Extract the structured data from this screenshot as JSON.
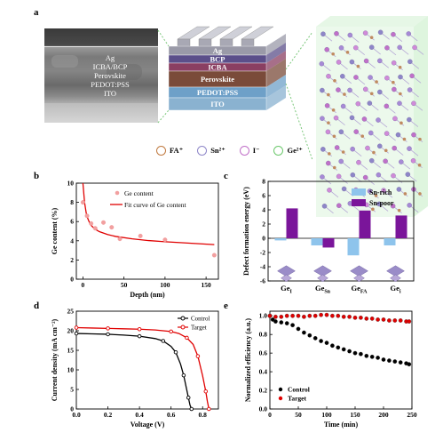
{
  "panels": {
    "a": {
      "label": "a",
      "sem_layers": [
        "Ag",
        "ICBA/BCP",
        "Perovskite",
        "PEDOT:PSS",
        "ITO"
      ],
      "stack_layers": [
        {
          "name": "Ag",
          "color": "#9a9aa8"
        },
        {
          "name": "BCP",
          "color": "#5b4f8a"
        },
        {
          "name": "ICBA",
          "color": "#8a3f62"
        },
        {
          "name": "Perovskite",
          "color": "#7a4b3a"
        },
        {
          "name": "PEDOT:PSS",
          "color": "#6ea0c8"
        },
        {
          "name": "ITO",
          "color": "#8ab2d0"
        }
      ],
      "legend": [
        {
          "text": "FA⁺",
          "color": "#c07a40"
        },
        {
          "text": "Sn²⁺",
          "color": "#8e86c8"
        },
        {
          "text": "I⁻",
          "color": "#c070c8"
        },
        {
          "text": "Ge²⁺",
          "color": "#6cc86c"
        }
      ]
    },
    "b": {
      "label": "b"
    },
    "c": {
      "label": "c"
    },
    "d": {
      "label": "d"
    },
    "e": {
      "label": "e"
    }
  },
  "chart_data": [
    {
      "id": "b",
      "type": "scatter",
      "xlabel": "Depth (nm)",
      "ylabel": "Ge content (%)",
      "xlim": [
        -8,
        165
      ],
      "ylim": [
        0,
        10
      ],
      "xticks": [
        0,
        50,
        100,
        150
      ],
      "yticks": [
        0,
        2,
        4,
        6,
        8,
        10
      ],
      "series": [
        {
          "name": "Ge content",
          "color": "#f2a0a0",
          "x": [
            0,
            5,
            10,
            15,
            25,
            35,
            45,
            70,
            100,
            160
          ],
          "y": [
            8.0,
            6.6,
            5.8,
            5.3,
            5.9,
            5.4,
            4.2,
            4.5,
            4.1,
            2.5
          ]
        },
        {
          "name": "Fit curve of Ge content",
          "color": "#e00000",
          "x": [
            0,
            2,
            4,
            6,
            8,
            10,
            15,
            20,
            30,
            40,
            60,
            80,
            100,
            130,
            160
          ],
          "y": [
            10,
            8.0,
            6.9,
            6.3,
            5.9,
            5.6,
            5.2,
            4.95,
            4.65,
            4.45,
            4.2,
            4.02,
            3.9,
            3.75,
            3.6
          ]
        }
      ],
      "legend_position": "top-right"
    },
    {
      "id": "c",
      "type": "bar",
      "ylabel": "Defect formation energy (eV)",
      "ylim": [
        -6,
        8
      ],
      "yticks": [
        -6,
        -4,
        -2,
        0,
        2,
        4,
        6,
        8
      ],
      "categories": [
        "Geᵢ",
        "Ge_Sn",
        "Ge_FA",
        "Geᵢ"
      ],
      "category_labels": [
        {
          "base": "Ge",
          "sub": "I"
        },
        {
          "base": "Ge",
          "sub": "Sn"
        },
        {
          "base": "Ge",
          "sub": "FA"
        },
        {
          "base": "Ge",
          "sub": "i"
        }
      ],
      "series": [
        {
          "name": "Sn-rich",
          "color": "#8ec4ec",
          "values": [
            -0.3,
            -1.0,
            -2.4,
            -1.0
          ]
        },
        {
          "name": "Sn-poor",
          "color": "#7a159a",
          "values": [
            4.2,
            -1.3,
            3.9,
            3.2
          ]
        }
      ],
      "legend_position": "top-right"
    },
    {
      "id": "d",
      "type": "line",
      "xlabel": "Voltage (V)",
      "ylabel": "Current density (mA cm⁻²)",
      "xlim": [
        0,
        0.9
      ],
      "ylim": [
        0,
        25
      ],
      "xticks": [
        0.0,
        0.2,
        0.4,
        0.6,
        0.8
      ],
      "xtick_labels": [
        "0.0",
        "0.2",
        "0.4",
        "0.6",
        "0.8"
      ],
      "yticks": [
        0,
        5,
        10,
        15,
        20,
        25
      ],
      "series": [
        {
          "name": "Control",
          "color": "#000000",
          "x": [
            0,
            0.1,
            0.2,
            0.3,
            0.4,
            0.5,
            0.55,
            0.6,
            0.63,
            0.66,
            0.68,
            0.7,
            0.71,
            0.72,
            0.73
          ],
          "y": [
            19.3,
            19.2,
            19.1,
            18.9,
            18.6,
            18.0,
            17.4,
            16.0,
            14.5,
            11.5,
            8.6,
            4.8,
            2.9,
            1.0,
            0
          ]
        },
        {
          "name": "Target",
          "color": "#e00000",
          "x": [
            0,
            0.1,
            0.2,
            0.3,
            0.4,
            0.5,
            0.6,
            0.65,
            0.7,
            0.74,
            0.77,
            0.8,
            0.82,
            0.83,
            0.84
          ],
          "y": [
            20.8,
            20.7,
            20.6,
            20.5,
            20.4,
            20.2,
            19.8,
            19.3,
            18.2,
            16.5,
            13.5,
            8.5,
            4.5,
            2.0,
            0
          ]
        }
      ],
      "legend_position": "top-right"
    },
    {
      "id": "e",
      "type": "scatter",
      "xlabel": "Time (min)",
      "ylabel": "Normalized efficiency (a.u.)",
      "xlim": [
        0,
        250
      ],
      "ylim": [
        0,
        1.05
      ],
      "xticks": [
        0,
        50,
        100,
        150,
        200,
        250
      ],
      "yticks": [
        0.0,
        0.2,
        0.4,
        0.6,
        0.8,
        1.0
      ],
      "ytick_labels": [
        "0.0",
        "0.2",
        "0.4",
        "0.6",
        "0.8",
        "1.0"
      ],
      "series": [
        {
          "name": "Control",
          "color": "#000000",
          "x": [
            0,
            5,
            10,
            20,
            30,
            40,
            50,
            60,
            70,
            80,
            90,
            100,
            110,
            120,
            130,
            140,
            150,
            160,
            170,
            180,
            190,
            200,
            210,
            220,
            230,
            240,
            245
          ],
          "y": [
            1.0,
            0.96,
            0.94,
            0.93,
            0.92,
            0.9,
            0.86,
            0.82,
            0.79,
            0.76,
            0.73,
            0.71,
            0.68,
            0.66,
            0.64,
            0.62,
            0.6,
            0.59,
            0.57,
            0.56,
            0.55,
            0.53,
            0.52,
            0.51,
            0.5,
            0.49,
            0.48
          ]
        },
        {
          "name": "Target",
          "color": "#e00000",
          "x": [
            0,
            10,
            20,
            30,
            40,
            50,
            60,
            70,
            80,
            90,
            100,
            110,
            120,
            130,
            140,
            150,
            160,
            170,
            180,
            190,
            200,
            210,
            220,
            230,
            240,
            245
          ],
          "y": [
            1.0,
            0.99,
            0.99,
            1.0,
            1.0,
            1.0,
            0.99,
            1.0,
            1.0,
            1.01,
            1.01,
            1.0,
            1.0,
            0.99,
            0.99,
            0.98,
            0.98,
            0.97,
            0.97,
            0.96,
            0.96,
            0.95,
            0.95,
            0.95,
            0.94,
            0.94
          ]
        }
      ],
      "legend_position": "bottom-left"
    }
  ]
}
